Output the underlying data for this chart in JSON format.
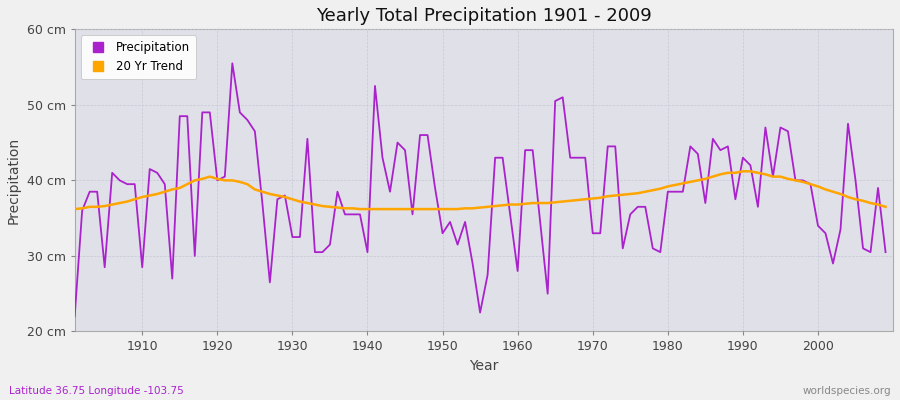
{
  "title": "Yearly Total Precipitation 1901 - 2009",
  "xlabel": "Year",
  "ylabel": "Precipitation",
  "bottom_left_text": "Latitude 36.75 Longitude -103.75",
  "bottom_right_text": "worldspecies.org",
  "ylim": [
    20,
    60
  ],
  "yticks": [
    20,
    30,
    40,
    50,
    60
  ],
  "ytick_labels": [
    "20 cm",
    "30 cm",
    "40 cm",
    "50 cm",
    "60 cm"
  ],
  "xticks": [
    1910,
    1920,
    1930,
    1940,
    1950,
    1960,
    1970,
    1980,
    1990,
    2000
  ],
  "xlim": [
    1901,
    2010
  ],
  "precip_color": "#AA22CC",
  "trend_color": "#FFA500",
  "fig_bg_color": "#F0F0F0",
  "plot_bg_color": "#E0E0E8",
  "grid_color": "#C8C8D8",
  "years": [
    1901,
    1902,
    1903,
    1904,
    1905,
    1906,
    1907,
    1908,
    1909,
    1910,
    1911,
    1912,
    1913,
    1914,
    1915,
    1916,
    1917,
    1918,
    1919,
    1920,
    1921,
    1922,
    1923,
    1924,
    1925,
    1926,
    1927,
    1928,
    1929,
    1930,
    1931,
    1932,
    1933,
    1934,
    1935,
    1936,
    1937,
    1938,
    1939,
    1940,
    1941,
    1942,
    1943,
    1944,
    1945,
    1946,
    1947,
    1948,
    1949,
    1950,
    1951,
    1952,
    1953,
    1954,
    1955,
    1956,
    1957,
    1958,
    1959,
    1960,
    1961,
    1962,
    1963,
    1964,
    1965,
    1966,
    1967,
    1968,
    1969,
    1970,
    1971,
    1972,
    1973,
    1974,
    1975,
    1976,
    1977,
    1978,
    1979,
    1980,
    1981,
    1982,
    1983,
    1984,
    1985,
    1986,
    1987,
    1988,
    1989,
    1990,
    1991,
    1992,
    1993,
    1994,
    1995,
    1996,
    1997,
    1998,
    1999,
    2000,
    2001,
    2002,
    2003,
    2004,
    2005,
    2006,
    2007,
    2008,
    2009
  ],
  "precipitation": [
    22.0,
    36.0,
    38.5,
    38.5,
    28.5,
    41.0,
    40.0,
    39.5,
    39.5,
    28.5,
    41.5,
    41.0,
    39.5,
    27.0,
    48.5,
    48.5,
    30.0,
    49.0,
    49.0,
    40.0,
    40.5,
    55.5,
    49.0,
    48.0,
    46.5,
    37.0,
    26.5,
    37.5,
    38.0,
    32.5,
    32.5,
    45.5,
    30.5,
    30.5,
    31.5,
    38.5,
    35.5,
    35.5,
    35.5,
    30.5,
    52.5,
    43.0,
    38.5,
    45.0,
    44.0,
    35.5,
    46.0,
    46.0,
    39.0,
    33.0,
    34.5,
    31.5,
    34.5,
    29.0,
    22.5,
    27.5,
    43.0,
    43.0,
    35.5,
    28.0,
    44.0,
    44.0,
    34.5,
    25.0,
    50.5,
    51.0,
    43.0,
    43.0,
    43.0,
    33.0,
    33.0,
    44.5,
    44.5,
    31.0,
    35.5,
    36.5,
    36.5,
    31.0,
    30.5,
    38.5,
    38.5,
    38.5,
    44.5,
    43.5,
    37.0,
    45.5,
    44.0,
    44.5,
    37.5,
    43.0,
    42.0,
    36.5,
    47.0,
    40.5,
    47.0,
    46.5,
    40.0,
    40.0,
    39.5,
    34.0,
    33.0,
    29.0,
    33.5,
    47.5,
    40.0,
    31.0,
    30.5,
    39.0,
    30.5
  ],
  "trend": [
    36.2,
    36.3,
    36.5,
    36.5,
    36.6,
    36.8,
    37.0,
    37.2,
    37.5,
    37.8,
    38.0,
    38.2,
    38.5,
    38.8,
    39.0,
    39.5,
    40.0,
    40.2,
    40.5,
    40.2,
    40.0,
    40.0,
    39.8,
    39.5,
    38.8,
    38.5,
    38.2,
    38.0,
    37.8,
    37.5,
    37.2,
    37.0,
    36.8,
    36.6,
    36.5,
    36.4,
    36.3,
    36.3,
    36.2,
    36.2,
    36.2,
    36.2,
    36.2,
    36.2,
    36.2,
    36.2,
    36.2,
    36.2,
    36.2,
    36.2,
    36.2,
    36.2,
    36.3,
    36.3,
    36.4,
    36.5,
    36.6,
    36.7,
    36.8,
    36.8,
    36.9,
    37.0,
    37.0,
    37.0,
    37.1,
    37.2,
    37.3,
    37.4,
    37.5,
    37.6,
    37.7,
    37.9,
    38.0,
    38.1,
    38.2,
    38.3,
    38.5,
    38.7,
    38.9,
    39.2,
    39.4,
    39.6,
    39.8,
    40.0,
    40.2,
    40.5,
    40.8,
    41.0,
    41.0,
    41.2,
    41.2,
    41.0,
    40.8,
    40.5,
    40.5,
    40.2,
    40.0,
    39.8,
    39.5,
    39.2,
    38.8,
    38.5,
    38.2,
    37.8,
    37.5,
    37.3,
    37.0,
    36.8,
    36.5
  ]
}
